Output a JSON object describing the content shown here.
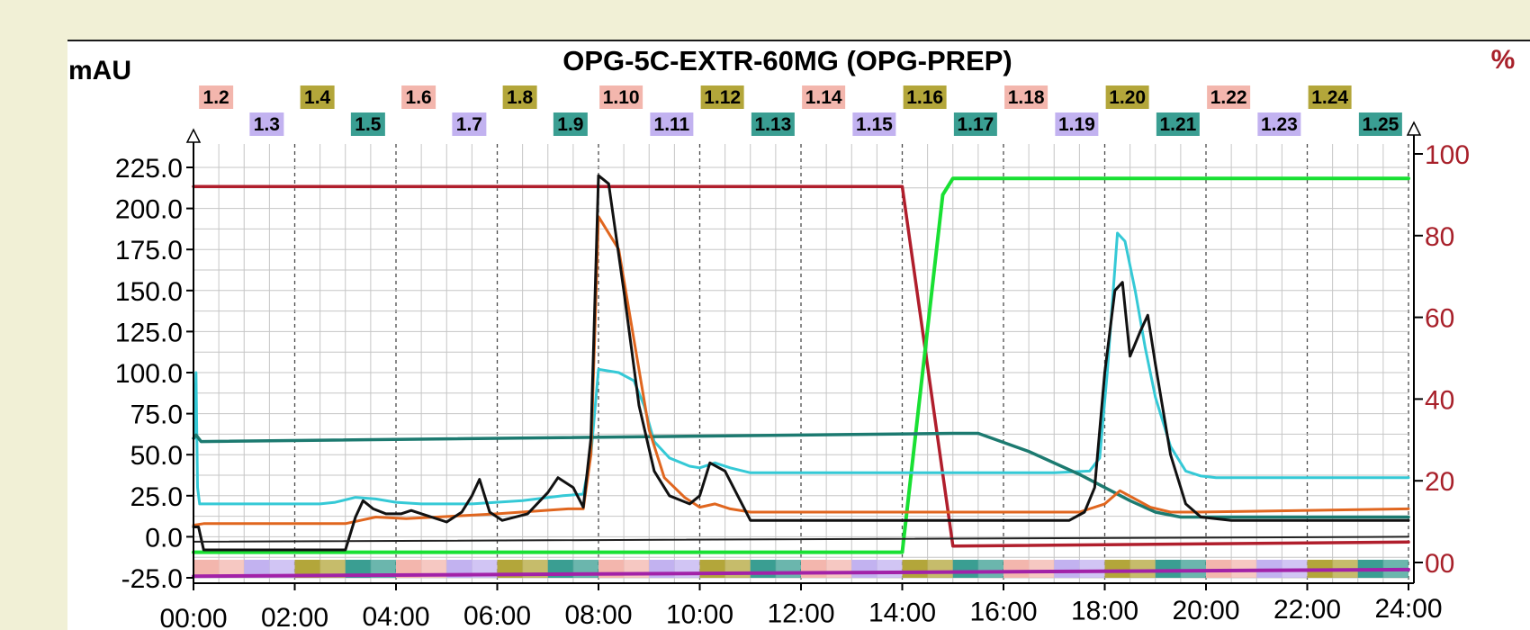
{
  "chart_data": {
    "type": "line",
    "title": "OPG-5C-EXTR-60MG (OPG-PREP)",
    "ylabel_left": "mAU",
    "ylabel_right": "%",
    "xlim": [
      0,
      24
    ],
    "ylim_left": [
      -25,
      225
    ],
    "ylim_right": [
      0,
      100
    ],
    "grid": true,
    "x_ticks": [
      "00:00",
      "02:00",
      "04:00",
      "06:00",
      "08:00",
      "10:00",
      "12:00",
      "14:00",
      "16:00",
      "18:00",
      "20:00",
      "22:00",
      "24:00"
    ],
    "y_ticks_left": [
      "-25.0",
      "0.0",
      "25.0",
      "50.0",
      "75.0",
      "100.0",
      "125.0",
      "150.0",
      "175.0",
      "200.0",
      "225.0"
    ],
    "y_ticks_right": [
      "00",
      "20",
      "40",
      "60",
      "80",
      "100"
    ],
    "fractions": [
      {
        "label": "1.2",
        "x": 0,
        "color": "#f3b6ad"
      },
      {
        "label": "1.3",
        "x": 1,
        "color": "#c2b2f0"
      },
      {
        "label": "1.4",
        "x": 2,
        "color": "#b3a63a"
      },
      {
        "label": "1.5",
        "x": 3,
        "color": "#3a9e92"
      },
      {
        "label": "1.6",
        "x": 4,
        "color": "#f3b6ad"
      },
      {
        "label": "1.7",
        "x": 5,
        "color": "#c2b2f0"
      },
      {
        "label": "1.8",
        "x": 6,
        "color": "#b3a63a"
      },
      {
        "label": "1.9",
        "x": 7,
        "color": "#3a9e92"
      },
      {
        "label": "1.10",
        "x": 8,
        "color": "#f3b6ad"
      },
      {
        "label": "1.11",
        "x": 9,
        "color": "#c2b2f0"
      },
      {
        "label": "1.12",
        "x": 10,
        "color": "#b3a63a"
      },
      {
        "label": "1.13",
        "x": 11,
        "color": "#3a9e92"
      },
      {
        "label": "1.14",
        "x": 12,
        "color": "#f3b6ad"
      },
      {
        "label": "1.15",
        "x": 13,
        "color": "#c2b2f0"
      },
      {
        "label": "1.16",
        "x": 14,
        "color": "#b3a63a"
      },
      {
        "label": "1.17",
        "x": 15,
        "color": "#3a9e92"
      },
      {
        "label": "1.18",
        "x": 16,
        "color": "#f3b6ad"
      },
      {
        "label": "1.19",
        "x": 17,
        "color": "#c2b2f0"
      },
      {
        "label": "1.20",
        "x": 18,
        "color": "#b3a63a"
      },
      {
        "label": "1.21",
        "x": 19,
        "color": "#3a9e92"
      },
      {
        "label": "1.22",
        "x": 20,
        "color": "#f3b6ad"
      },
      {
        "label": "1.23",
        "x": 21,
        "color": "#c2b2f0"
      },
      {
        "label": "1.24",
        "x": 22,
        "color": "#b3a63a"
      },
      {
        "label": "1.25",
        "x": 23,
        "color": "#3a9e92"
      }
    ],
    "series": [
      {
        "axis": "right",
        "color": "#b01e2c",
        "width": 3.5,
        "x": [
          0,
          14.0,
          15.0,
          24
        ],
        "y": [
          92,
          92,
          4,
          5
        ]
      },
      {
        "axis": "right",
        "color": "#19e033",
        "width": 4,
        "x": [
          0,
          14.0,
          14.8,
          15.0,
          24
        ],
        "y": [
          2.5,
          2.5,
          90,
          94,
          94
        ]
      },
      {
        "axis": "left",
        "color": "#35c9d6",
        "width": 3,
        "x": [
          0,
          0.02,
          0.05,
          0.08,
          0.12,
          0.2,
          2.5,
          2.8,
          3.2,
          3.6,
          4.0,
          4.5,
          5.5,
          6.5,
          7.3,
          7.7,
          7.85,
          8.0,
          8.4,
          8.7,
          8.9,
          9.1,
          9.4,
          9.8,
          10.0,
          10.3,
          10.6,
          11.0,
          12.0,
          14.0,
          15.0,
          17.0,
          17.7,
          17.9,
          18.05,
          18.25,
          18.4,
          18.6,
          18.8,
          19.0,
          19.3,
          19.6,
          19.9,
          20.2,
          24
        ],
        "y": [
          60,
          60,
          100,
          30,
          20,
          20,
          20,
          21,
          24,
          23,
          21,
          20,
          20,
          22,
          25,
          26,
          50,
          102,
          100,
          95,
          80,
          58,
          48,
          43,
          42,
          45,
          42,
          39,
          39,
          39,
          39,
          39,
          40,
          48,
          100,
          185,
          180,
          150,
          115,
          85,
          55,
          40,
          37,
          36,
          36
        ]
      },
      {
        "axis": "left",
        "color": "#1c7a70",
        "width": 3.5,
        "x": [
          0,
          0.05,
          0.15,
          15.0,
          15.5,
          16.5,
          17.5,
          18.5,
          19.0,
          19.5,
          20.5,
          24
        ],
        "y": [
          60,
          62,
          58,
          63,
          63,
          52,
          38,
          22,
          15,
          12,
          12,
          12
        ]
      },
      {
        "axis": "left",
        "color": "#e0661f",
        "width": 3,
        "x": [
          0,
          0.2,
          3.0,
          3.3,
          3.6,
          4.2,
          6.0,
          7.4,
          7.7,
          7.85,
          8.0,
          8.4,
          8.7,
          9.0,
          9.3,
          9.7,
          10.0,
          10.3,
          10.6,
          11.0,
          12.0,
          17.5,
          18.0,
          18.3,
          18.6,
          18.9,
          19.3,
          19.8,
          24
        ],
        "y": [
          7,
          8,
          8,
          10,
          12,
          11,
          14,
          17,
          17,
          50,
          195,
          175,
          120,
          65,
          36,
          24,
          18,
          20,
          17,
          15,
          15,
          15,
          20,
          28,
          23,
          18,
          15,
          15,
          17
        ]
      },
      {
        "axis": "left",
        "color": "#111111",
        "width": 3,
        "x": [
          0,
          0.1,
          0.2,
          3.0,
          3.2,
          3.35,
          3.55,
          3.8,
          4.1,
          4.3,
          4.6,
          5.0,
          5.3,
          5.5,
          5.65,
          5.85,
          6.1,
          6.6,
          7.0,
          7.2,
          7.5,
          7.7,
          7.85,
          8.0,
          8.2,
          8.5,
          8.8,
          9.1,
          9.4,
          9.8,
          10.0,
          10.2,
          10.5,
          10.8,
          11.0,
          12.0,
          17.3,
          17.6,
          17.8,
          18.0,
          18.2,
          18.35,
          18.5,
          18.7,
          18.85,
          19.0,
          19.3,
          19.6,
          19.9,
          20.5,
          24
        ],
        "y": [
          6,
          6,
          -8,
          -8,
          12,
          22,
          17,
          14,
          14,
          16,
          13,
          9,
          15,
          25,
          35,
          15,
          10,
          14,
          27,
          36,
          30,
          18,
          60,
          220,
          215,
          150,
          80,
          40,
          25,
          20,
          25,
          45,
          40,
          22,
          10,
          10,
          10,
          15,
          30,
          100,
          150,
          155,
          110,
          125,
          135,
          105,
          50,
          20,
          12,
          10,
          10
        ]
      },
      {
        "axis": "left",
        "color": "#222222",
        "width": 2,
        "x": [
          0,
          24
        ],
        "y": [
          -3,
          0
        ]
      },
      {
        "axis": "left",
        "color": "#a222a8",
        "width": 4,
        "x": [
          0,
          24
        ],
        "y": [
          -24,
          -20
        ]
      }
    ]
  }
}
